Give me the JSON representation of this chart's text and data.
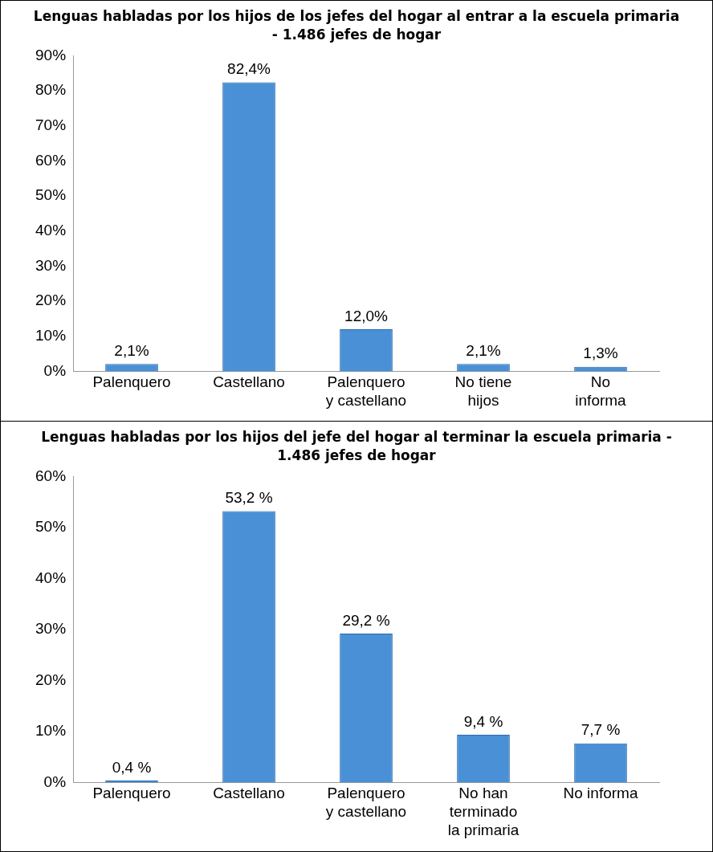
{
  "chart_data": [
    {
      "type": "bar",
      "title": "Lenguas habladas por los hijos de los jefes del hogar al entrar a la escuela primaria - 1.486 jefes de hogar",
      "categories": [
        "Palenquero",
        "Castellano",
        "Palenquero\ny castellano",
        "No tiene\nhijos",
        "No\ninforma"
      ],
      "values": [
        2.1,
        82.4,
        12.0,
        2.1,
        1.3
      ],
      "value_labels": [
        "2,1%",
        "82,4%",
        "12,0%",
        "2,1%",
        "1,3%"
      ],
      "color": "#4a90d6",
      "ylim": [
        0,
        90
      ],
      "yticks": [
        {
          "value": 0,
          "label": "0%"
        },
        {
          "value": 10,
          "label": "10%"
        },
        {
          "value": 20,
          "label": "20%"
        },
        {
          "value": 30,
          "label": "30%"
        },
        {
          "value": 40,
          "label": "40%"
        },
        {
          "value": 50,
          "label": "50%"
        },
        {
          "value": 60,
          "label": "60%"
        },
        {
          "value": 70,
          "label": "70%"
        },
        {
          "value": 80,
          "label": "80%"
        },
        {
          "value": 90,
          "label": "90%"
        }
      ],
      "grid": false,
      "legend": false
    },
    {
      "type": "bar",
      "title": "Lenguas habladas por los hijos del jefe del hogar al terminar la escuela primaria - 1.486 jefes de hogar",
      "categories": [
        "Palenquero",
        "Castellano",
        "Palenquero\ny castellano",
        "No han\nterminado\nla primaria",
        "No informa"
      ],
      "values": [
        0.4,
        53.2,
        29.2,
        9.4,
        7.7
      ],
      "value_labels": [
        "0,4 %",
        "53,2 %",
        "29,2 %",
        "9,4 %",
        "7,7 %"
      ],
      "color": "#4a90d6",
      "ylim": [
        0,
        60
      ],
      "yticks": [
        {
          "value": 0,
          "label": "0%"
        },
        {
          "value": 10,
          "label": "10%"
        },
        {
          "value": 20,
          "label": "20%"
        },
        {
          "value": 30,
          "label": "30%"
        },
        {
          "value": 40,
          "label": "40%"
        },
        {
          "value": 50,
          "label": "50%"
        },
        {
          "value": 60,
          "label": "60%"
        }
      ],
      "grid": false,
      "legend": false
    }
  ]
}
